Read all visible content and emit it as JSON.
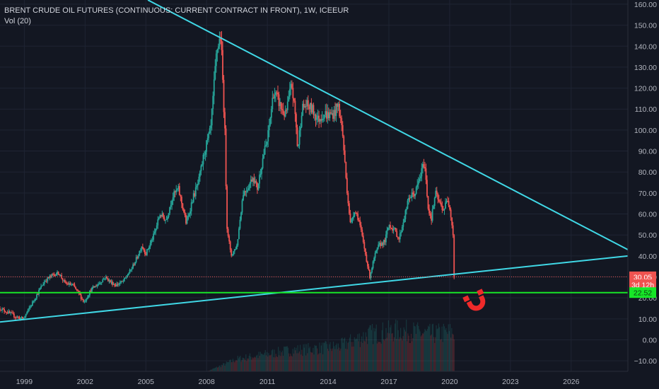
{
  "header": {
    "title": "BRENT CRUDE OIL FUTURES (CONTINUOUS: CURRENT CONTRACT IN FRONT), 1W, ICEEUR",
    "indicator": "Vol (20)"
  },
  "colors": {
    "background": "#131722",
    "grid": "#1f2433",
    "axis_text": "#b2b5be",
    "bull": "#26a69a",
    "bear": "#ef5350",
    "trendline": "#40d8e6",
    "support": "#17e628",
    "price_label": "#ef5350",
    "timer_label": "#ef5350",
    "support_label": "#17e628"
  },
  "chart_data": {
    "type": "line",
    "subtype": "candlestick-weekly",
    "title": "BRENT CRUDE OIL FUTURES (CONTINUOUS: CURRENT CONTRACT IN FRONT), 1W, ICEEUR",
    "ylim": [
      -15,
      162
    ],
    "xlim": [
      1997.8,
      2028.8
    ],
    "y_ticks": [
      160,
      150,
      140,
      130,
      120,
      110,
      100,
      90,
      80,
      70,
      60,
      50,
      40,
      30,
      20,
      10,
      0,
      -10
    ],
    "y_tick_labels": [
      "160.00",
      "150.00",
      "140.00",
      "130.00",
      "120.00",
      "110.00",
      "100.00",
      "90.00",
      "80.00",
      "70.00",
      "60.00",
      "50.00",
      "40.00",
      "30.00",
      "20.00",
      "10.00",
      "0.00",
      "−10.00"
    ],
    "x_ticks": [
      1999,
      2002,
      2005,
      2008,
      2011,
      2014,
      2017,
      2020,
      2023,
      2026
    ],
    "x_tick_labels": [
      "1999",
      "2002",
      "2005",
      "2008",
      "2011",
      "2014",
      "2017",
      "2020",
      "2023",
      "2026"
    ],
    "series": [
      {
        "name": "price",
        "x": [
          1997.8,
          1998.2,
          1998.6,
          1998.95,
          1999.3,
          1999.7,
          2000.0,
          2000.4,
          2000.7,
          2001.0,
          2001.4,
          2001.7,
          2001.95,
          2002.3,
          2002.7,
          2003.0,
          2003.2,
          2003.5,
          2003.9,
          2004.3,
          2004.6,
          2004.8,
          2005.0,
          2005.4,
          2005.7,
          2006.0,
          2006.3,
          2006.6,
          2006.9,
          2007.0,
          2007.3,
          2007.6,
          2007.9,
          2008.2,
          2008.5,
          2008.7,
          2008.9,
          2009.0,
          2009.2,
          2009.5,
          2009.8,
          2010.0,
          2010.3,
          2010.5,
          2010.8,
          2011.0,
          2011.3,
          2011.5,
          2011.7,
          2011.9,
          2012.2,
          2012.4,
          2012.5,
          2012.7,
          2012.9,
          2013.2,
          2013.5,
          2013.8,
          2014.0,
          2014.3,
          2014.5,
          2014.7,
          2014.9,
          2015.1,
          2015.3,
          2015.5,
          2015.7,
          2015.9,
          2016.05,
          2016.3,
          2016.5,
          2016.8,
          2017.0,
          2017.3,
          2017.5,
          2017.8,
          2018.0,
          2018.3,
          2018.55,
          2018.75,
          2018.95,
          2019.1,
          2019.3,
          2019.5,
          2019.7,
          2019.9,
          2020.0,
          2020.1,
          2020.17,
          2020.22
        ],
        "values": [
          15,
          13,
          11,
          10,
          16,
          23,
          28,
          31,
          32,
          27,
          26,
          22,
          18,
          24,
          27,
          30,
          28,
          26,
          28,
          34,
          40,
          45,
          41,
          50,
          60,
          57,
          68,
          72,
          60,
          55,
          67,
          75,
          90,
          100,
          138,
          145,
          100,
          55,
          40,
          45,
          70,
          72,
          78,
          72,
          88,
          95,
          118,
          115,
          110,
          107,
          122,
          105,
          90,
          110,
          112,
          110,
          105,
          108,
          107,
          108,
          112,
          100,
          75,
          55,
          62,
          58,
          48,
          38,
          30,
          40,
          45,
          47,
          55,
          52,
          48,
          60,
          68,
          70,
          78,
          85,
          62,
          58,
          70,
          65,
          62,
          67,
          64,
          56,
          50,
          30.05
        ]
      }
    ],
    "volume": {
      "name": "Vol (20)",
      "x": [
        2009.5,
        2012.0,
        2014.5,
        2016.0,
        2017.5,
        2019.0,
        2020.1
      ],
      "relative": [
        0.3,
        0.5,
        0.6,
        0.9,
        1.0,
        0.9,
        0.95
      ]
    },
    "annotations": {
      "upper_trendline": {
        "points": [
          [
            2005.1,
            162
          ],
          [
            2028.8,
            43
          ]
        ]
      },
      "lower_trendline": {
        "points": [
          [
            1997.8,
            8.5
          ],
          [
            2028.8,
            40
          ]
        ]
      },
      "support_line": {
        "y": 22.52
      },
      "current_price_line": {
        "y": 30.05
      },
      "labels": [
        {
          "text": "30.05",
          "y": 30.05
        },
        {
          "text": "3d 12h",
          "y": 26.3
        },
        {
          "text": "22.52",
          "y": 22.52
        }
      ]
    },
    "grid": true
  }
}
